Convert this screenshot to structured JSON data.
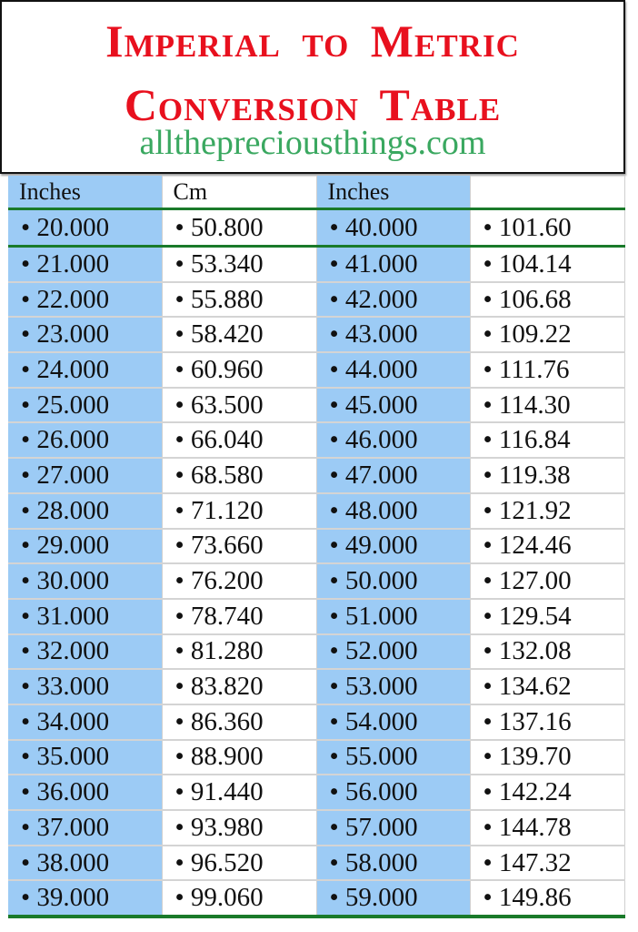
{
  "header": {
    "title_line1": "Imperial to Metric",
    "title_line2": "Conversion Table",
    "website": "alltheprecious­things.com"
  },
  "colors": {
    "title": "#e8101e",
    "website": "#3aa860",
    "inches_column_bg": "#9ccbf5",
    "rule": "#1a7a2a"
  },
  "table": {
    "columns": [
      "Inches",
      "Cm",
      "Inches",
      ""
    ],
    "rows": [
      [
        "• 20.000",
        "• 50.800",
        "• 40.000",
        "• 101.60"
      ],
      [
        "• 21.000",
        "• 53.340",
        "• 41.000",
        "• 104.14"
      ],
      [
        "• 22.000",
        "• 55.880",
        "• 42.000",
        "• 106.68"
      ],
      [
        "• 23.000",
        "• 58.420",
        "• 43.000",
        "• 109.22"
      ],
      [
        "• 24.000",
        "• 60.960",
        "• 44.000",
        "• 111.76"
      ],
      [
        "• 25.000",
        "• 63.500",
        "• 45.000",
        "• 114.30"
      ],
      [
        "• 26.000",
        "• 66.040",
        "• 46.000",
        "• 116.84"
      ],
      [
        "• 27.000",
        "• 68.580",
        "• 47.000",
        "• 119.38"
      ],
      [
        "• 28.000",
        "• 71.120",
        "• 48.000",
        "• 121.92"
      ],
      [
        "• 29.000",
        "• 73.660",
        "• 49.000",
        "• 124.46"
      ],
      [
        "• 30.000",
        "• 76.200",
        "• 50.000",
        "• 127.00"
      ],
      [
        "• 31.000",
        "• 78.740",
        "• 51.000",
        "• 129.54"
      ],
      [
        "• 32.000",
        "• 81.280",
        "• 52.000",
        "• 132.08"
      ],
      [
        "• 33.000",
        "• 83.820",
        "• 53.000",
        "• 134.62"
      ],
      [
        "• 34.000",
        "• 86.360",
        "• 54.000",
        "• 137.16"
      ],
      [
        "• 35.000",
        "• 88.900",
        "• 55.000",
        "• 139.70"
      ],
      [
        "• 36.000",
        "• 91.440",
        "• 56.000",
        "• 142.24"
      ],
      [
        "• 37.000",
        "• 93.980",
        "• 57.000",
        "• 144.78"
      ],
      [
        "• 38.000",
        "• 96.520",
        "• 58.000",
        "• 147.32"
      ],
      [
        "• 39.000",
        "• 99.060",
        "• 59.000",
        "• 149.86"
      ]
    ]
  }
}
